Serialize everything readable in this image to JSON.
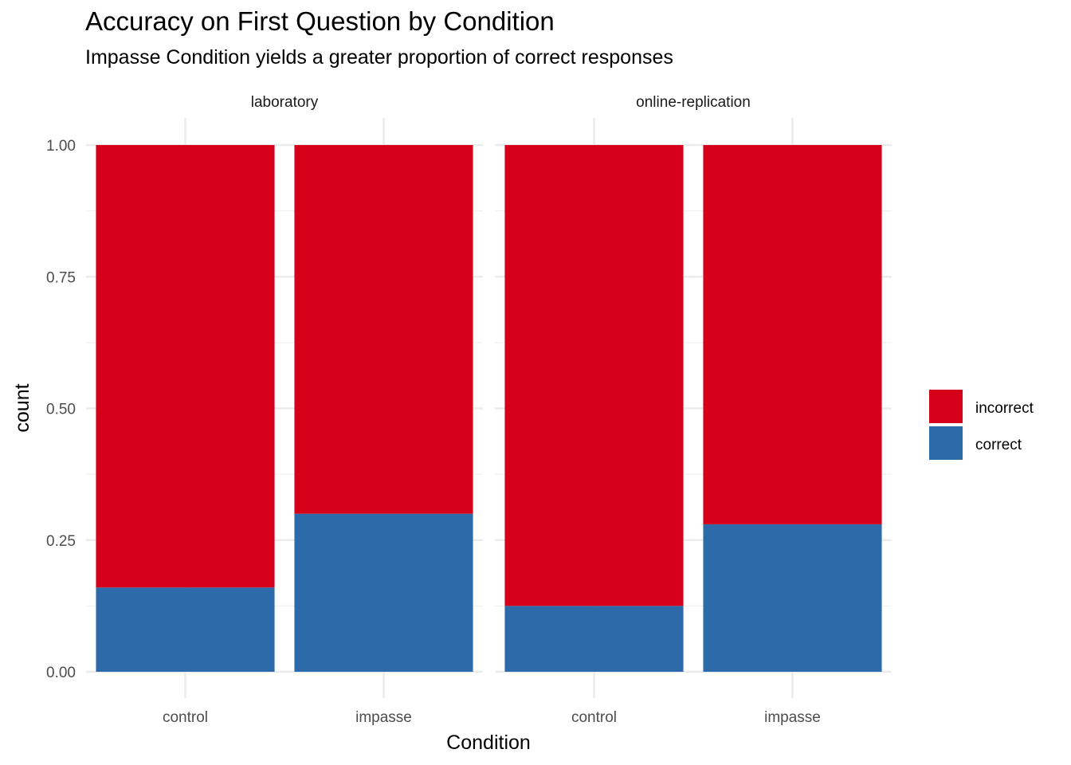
{
  "chart_data": {
    "type": "bar",
    "stacked": true,
    "title": "Accuracy on First Question by Condition",
    "subtitle": "Impasse Condition yields a greater proportion of correct responses",
    "xlabel": "Condition",
    "ylabel": "count",
    "ylim": [
      0,
      1
    ],
    "yticks": [
      "0.00",
      "0.25",
      "0.50",
      "0.75",
      "1.00"
    ],
    "ytick_values": [
      0,
      0.25,
      0.5,
      0.75,
      1.0
    ],
    "categories": [
      "control",
      "impasse"
    ],
    "grid": true,
    "legend_position": "right",
    "legend": [
      {
        "name": "incorrect",
        "color": "#D7001A"
      },
      {
        "name": "correct",
        "color": "#2D6AA9"
      }
    ],
    "panels": [
      {
        "name": "laboratory",
        "series": [
          {
            "name": "correct",
            "values": [
              0.16,
              0.3
            ]
          },
          {
            "name": "incorrect",
            "values": [
              0.84,
              0.7
            ]
          }
        ]
      },
      {
        "name": "online-replication",
        "series": [
          {
            "name": "correct",
            "values": [
              0.125,
              0.28
            ]
          },
          {
            "name": "incorrect",
            "values": [
              0.875,
              0.72
            ]
          }
        ]
      }
    ]
  }
}
